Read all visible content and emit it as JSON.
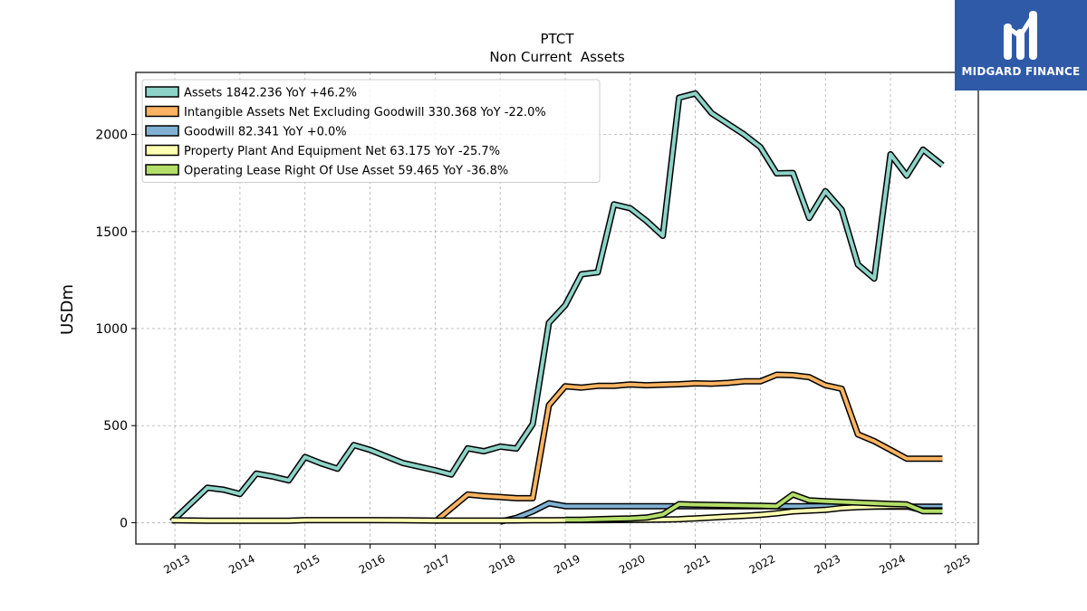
{
  "logo": {
    "text": "MIDGARD FINANCE",
    "colors": {
      "background": "#2f5aa8",
      "mark": "#ffffff"
    }
  },
  "chart_data": {
    "type": "line",
    "title": "PTCT",
    "subtitle": "Non Current  Assets",
    "ylabel": "USDm",
    "xlabel": "",
    "xlim": [
      2012.4,
      2025.35
    ],
    "ylim": [
      -110,
      2320
    ],
    "xticks": [
      "2013",
      "2014",
      "2015",
      "2016",
      "2017",
      "2018",
      "2019",
      "2020",
      "2021",
      "2022",
      "2023",
      "2024",
      "2025"
    ],
    "yticks": [
      "0",
      "500",
      "1000",
      "1500",
      "2000"
    ],
    "grid": true,
    "legend_position": "top-left",
    "series": [
      {
        "name": "Assets  1842.236 YoY +46.2%",
        "color": "#8dd3c7",
        "points": [
          [
            2012.95,
            5
          ],
          [
            2013.5,
            180
          ],
          [
            2013.75,
            170
          ],
          [
            2014.0,
            148
          ],
          [
            2014.25,
            253
          ],
          [
            2014.5,
            238
          ],
          [
            2014.75,
            218
          ],
          [
            2015.0,
            338
          ],
          [
            2015.25,
            305
          ],
          [
            2015.5,
            278
          ],
          [
            2015.75,
            400
          ],
          [
            2016.0,
            375
          ],
          [
            2016.5,
            308
          ],
          [
            2017.0,
            270
          ],
          [
            2017.25,
            248
          ],
          [
            2017.5,
            383
          ],
          [
            2017.75,
            368
          ],
          [
            2018.0,
            392
          ],
          [
            2018.25,
            382
          ],
          [
            2018.5,
            508
          ],
          [
            2018.75,
            1030
          ],
          [
            2019.0,
            1120
          ],
          [
            2019.25,
            1280
          ],
          [
            2019.5,
            1290
          ],
          [
            2019.75,
            1640
          ],
          [
            2020.0,
            1620
          ],
          [
            2020.25,
            1555
          ],
          [
            2020.5,
            1478
          ],
          [
            2020.75,
            2190
          ],
          [
            2021.0,
            2212
          ],
          [
            2021.25,
            2110
          ],
          [
            2021.5,
            2055
          ],
          [
            2021.75,
            2000
          ],
          [
            2022.0,
            1935
          ],
          [
            2022.25,
            1800
          ],
          [
            2022.5,
            1802
          ],
          [
            2022.75,
            1570
          ],
          [
            2023.0,
            1708
          ],
          [
            2023.25,
            1612
          ],
          [
            2023.5,
            1330
          ],
          [
            2023.75,
            1258
          ],
          [
            2024.0,
            1898
          ],
          [
            2024.25,
            1788
          ],
          [
            2024.5,
            1922
          ],
          [
            2024.8,
            1842
          ]
        ]
      },
      {
        "name": "Intangible Assets Net Excluding Goodwill  330.368 YoY -22.0%",
        "color": "#fdb462",
        "points": [
          [
            2017.0,
            5
          ],
          [
            2017.5,
            145
          ],
          [
            2017.75,
            137
          ],
          [
            2018.0,
            132
          ],
          [
            2018.25,
            126
          ],
          [
            2018.5,
            126
          ],
          [
            2018.75,
            605
          ],
          [
            2019.0,
            703
          ],
          [
            2019.25,
            696
          ],
          [
            2019.5,
            705
          ],
          [
            2019.75,
            705
          ],
          [
            2020.0,
            712
          ],
          [
            2020.25,
            708
          ],
          [
            2020.5,
            711
          ],
          [
            2020.75,
            713
          ],
          [
            2021.0,
            718
          ],
          [
            2021.25,
            716
          ],
          [
            2021.5,
            720
          ],
          [
            2021.75,
            728
          ],
          [
            2022.0,
            728
          ],
          [
            2022.25,
            762
          ],
          [
            2022.5,
            760
          ],
          [
            2022.75,
            750
          ],
          [
            2023.0,
            708
          ],
          [
            2023.25,
            690
          ],
          [
            2023.5,
            455
          ],
          [
            2023.75,
            420
          ],
          [
            2024.0,
            375
          ],
          [
            2024.25,
            330
          ],
          [
            2024.5,
            330
          ],
          [
            2024.8,
            330
          ]
        ]
      },
      {
        "name": "Goodwill  82.341 YoY +0.0%",
        "color": "#80b1d3",
        "points": [
          [
            2018.0,
            5
          ],
          [
            2018.25,
            25
          ],
          [
            2018.5,
            58
          ],
          [
            2018.75,
            100
          ],
          [
            2019.0,
            85
          ],
          [
            2019.5,
            85
          ],
          [
            2020.0,
            85
          ],
          [
            2020.5,
            85
          ],
          [
            2021.0,
            85
          ],
          [
            2021.5,
            85
          ],
          [
            2022.0,
            85
          ],
          [
            2022.5,
            85
          ],
          [
            2023.0,
            85
          ],
          [
            2023.5,
            83
          ],
          [
            2024.0,
            82
          ],
          [
            2024.5,
            82
          ],
          [
            2024.8,
            82
          ]
        ]
      },
      {
        "name": "Property Plant And Equipment Net  63.175 YoY -25.7%",
        "color": "#ffffb3",
        "points": [
          [
            2012.95,
            12
          ],
          [
            2013.5,
            10
          ],
          [
            2014.0,
            10
          ],
          [
            2014.5,
            10
          ],
          [
            2014.75,
            10
          ],
          [
            2015.0,
            13
          ],
          [
            2015.5,
            13
          ],
          [
            2016.0,
            13
          ],
          [
            2016.5,
            12
          ],
          [
            2017.0,
            11
          ],
          [
            2017.5,
            11
          ],
          [
            2018.0,
            11
          ],
          [
            2018.5,
            12
          ],
          [
            2018.75,
            12
          ],
          [
            2019.0,
            13
          ],
          [
            2019.5,
            13
          ],
          [
            2020.0,
            14
          ],
          [
            2020.5,
            16
          ],
          [
            2020.75,
            18
          ],
          [
            2021.0,
            22
          ],
          [
            2021.25,
            26
          ],
          [
            2021.5,
            31
          ],
          [
            2021.75,
            35
          ],
          [
            2022.0,
            40
          ],
          [
            2022.25,
            48
          ],
          [
            2022.5,
            58
          ],
          [
            2022.75,
            62
          ],
          [
            2023.0,
            66
          ],
          [
            2023.25,
            75
          ],
          [
            2023.5,
            80
          ],
          [
            2023.75,
            83
          ],
          [
            2024.0,
            85
          ],
          [
            2024.25,
            85
          ],
          [
            2024.5,
            63
          ],
          [
            2024.8,
            63
          ]
        ]
      },
      {
        "name": "Operating Lease Right Of Use Asset  59.465 YoY -36.8%",
        "color": "#b3de69",
        "points": [
          [
            2019.0,
            15
          ],
          [
            2019.25,
            15
          ],
          [
            2019.5,
            18
          ],
          [
            2019.75,
            20
          ],
          [
            2020.0,
            22
          ],
          [
            2020.25,
            26
          ],
          [
            2020.5,
            42
          ],
          [
            2020.75,
            95
          ],
          [
            2021.0,
            93
          ],
          [
            2021.5,
            90
          ],
          [
            2022.0,
            87
          ],
          [
            2022.25,
            85
          ],
          [
            2022.5,
            145
          ],
          [
            2022.75,
            115
          ],
          [
            2023.0,
            110
          ],
          [
            2023.5,
            103
          ],
          [
            2024.0,
            96
          ],
          [
            2024.25,
            94
          ],
          [
            2024.5,
            59
          ],
          [
            2024.8,
            59
          ]
        ]
      }
    ]
  }
}
